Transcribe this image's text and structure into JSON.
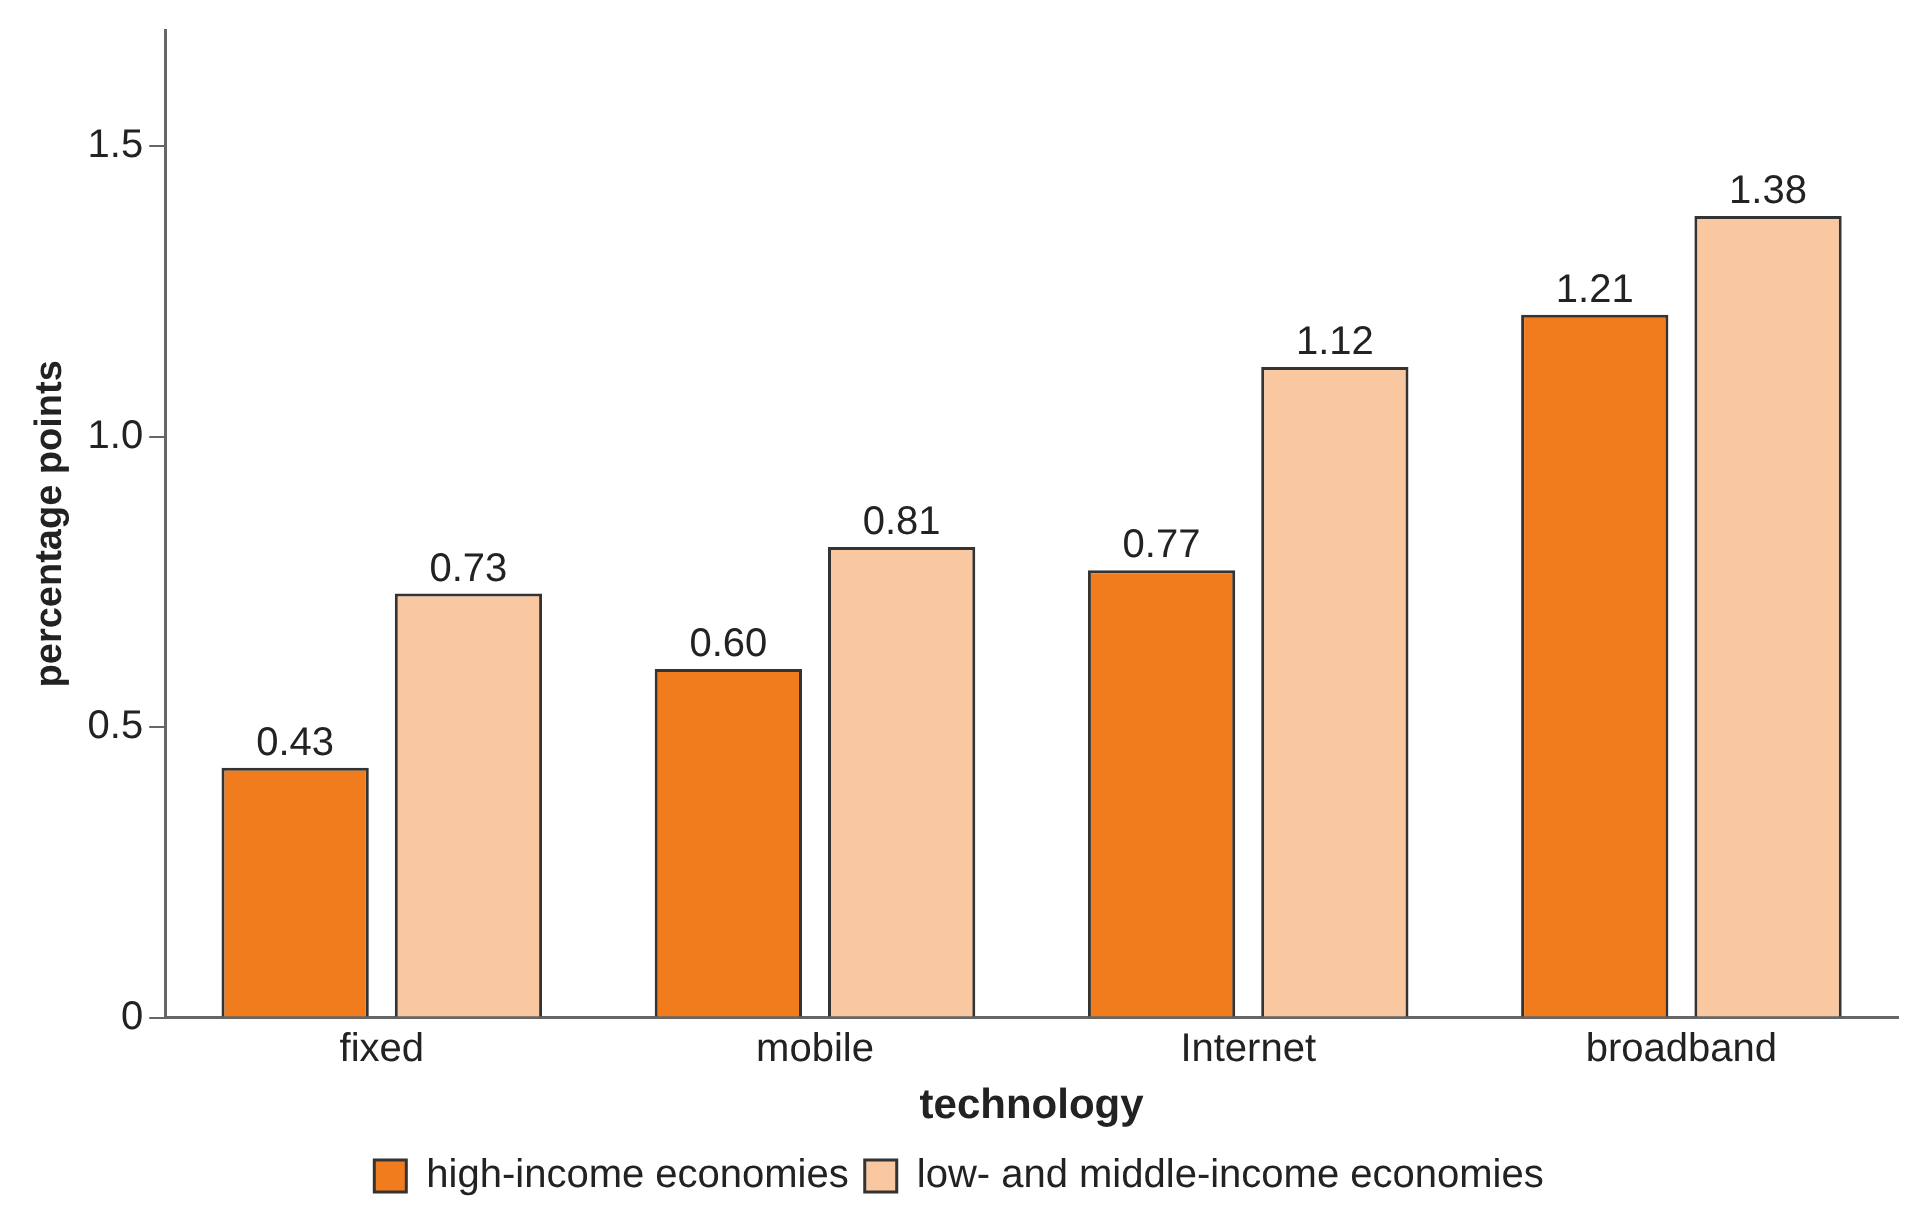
{
  "chart_data": {
    "type": "bar",
    "xlabel": "technology",
    "ylabel": "percentage points",
    "categories": [
      "fixed",
      "mobile",
      "Internet",
      "broadband"
    ],
    "series": [
      {
        "name": "high-income economies",
        "color": "#f07c1e",
        "values": [
          0.43,
          0.6,
          0.77,
          1.21
        ],
        "value_labels": [
          "0.43",
          "0.60",
          "0.77",
          "1.21"
        ]
      },
      {
        "name": "low- and middle-income economies",
        "color": "#fac8a0",
        "values": [
          0.73,
          0.81,
          1.12,
          1.38
        ],
        "value_labels": [
          "0.73",
          "0.81",
          "1.12",
          "1.38"
        ]
      }
    ],
    "ylim": [
      0,
      1.7
    ],
    "yticks": [
      0,
      {
        "value": 0.5,
        "label": "0.5"
      },
      {
        "value": 1,
        "label": "1.0"
      },
      1.5
    ],
    "grid": false,
    "legend": "bottom"
  }
}
